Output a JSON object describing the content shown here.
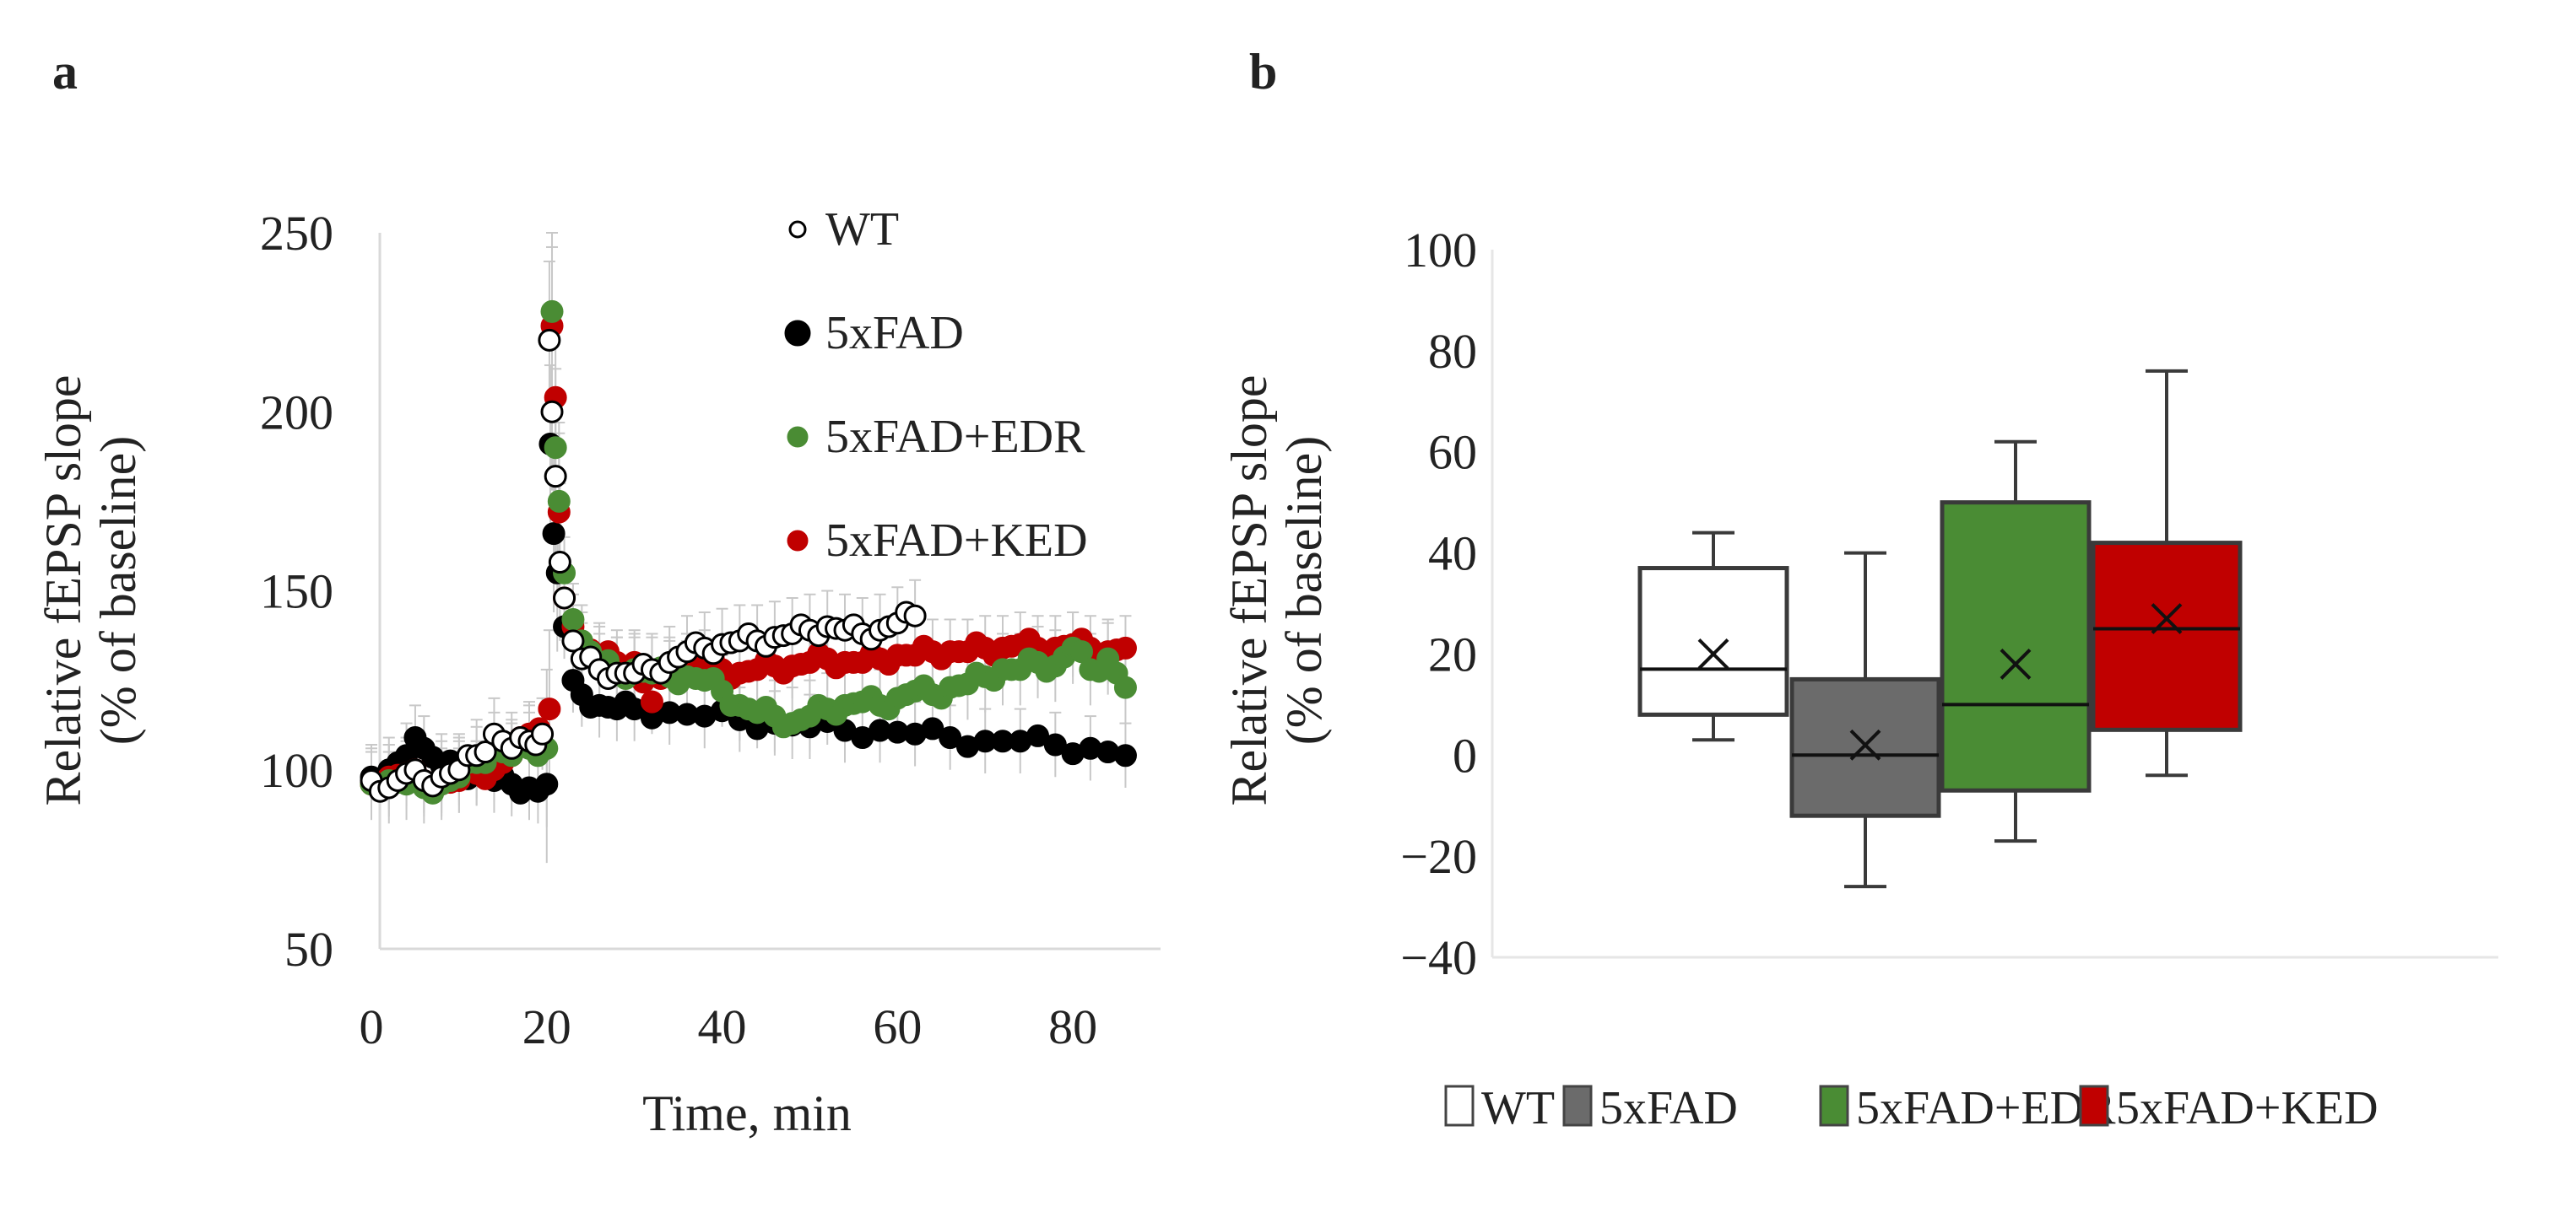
{
  "chart_data": [
    {
      "panel": "a",
      "type": "scatter",
      "title": "",
      "xlabel": "Time, min",
      "ylabel": "Relative fEPSP slope (% of baseline)",
      "xlim": [
        0,
        90
      ],
      "ylim": [
        50,
        250
      ],
      "xticks": [
        "0",
        "20",
        "40",
        "60",
        "80"
      ],
      "yticks": [
        "50",
        "100",
        "150",
        "200",
        "250"
      ],
      "grid": false,
      "legend_position": "top-right",
      "error_bars": "SEM (grey)",
      "series": [
        {
          "name": "WT",
          "color": "#ffffff",
          "stroke": "#000000",
          "x": [
            0,
            2,
            4,
            6,
            8,
            10,
            12,
            14,
            16,
            18,
            19.5,
            20.3,
            20.6,
            21,
            21.5,
            22,
            23,
            24,
            26,
            28,
            30,
            32,
            34,
            36,
            38,
            40,
            42,
            44,
            46,
            48,
            50,
            52,
            54,
            56,
            58,
            60,
            62
          ],
          "y": [
            97,
            95,
            99,
            97,
            98,
            100,
            104,
            110,
            106,
            108,
            110,
            220,
            200,
            182,
            158,
            148,
            136,
            131,
            128,
            127,
            127,
            128,
            130,
            133,
            134,
            135,
            136,
            136,
            137,
            138,
            139,
            140,
            139,
            138,
            139,
            141,
            143
          ],
          "sem": 10
        },
        {
          "name": "5xFAD",
          "color": "#000000",
          "stroke": "#000000",
          "x": [
            0,
            2,
            4,
            5,
            6,
            8,
            10,
            12,
            14,
            16,
            18,
            19,
            20,
            20.4,
            20.8,
            21.2,
            22,
            23,
            24,
            26,
            28,
            30,
            34,
            38,
            42,
            46,
            50,
            54,
            58,
            62,
            66,
            70,
            74,
            78,
            82,
            86
          ],
          "y": [
            98,
            100,
            104,
            109,
            106,
            101,
            100,
            99,
            97,
            96,
            95,
            94,
            96,
            191,
            166,
            155,
            140,
            125,
            121,
            118,
            117,
            117,
            116,
            115,
            114,
            113,
            112,
            111,
            111,
            110,
            109,
            108,
            108,
            107,
            106,
            104
          ],
          "sem": 9
        },
        {
          "name": "5xFAD+EDR",
          "color": "#4a8c34",
          "stroke": "#4a8c34",
          "x": [
            0,
            2,
            4,
            6,
            8,
            10,
            12,
            14,
            16,
            18,
            20,
            20.6,
            21,
            21.4,
            22,
            23,
            24,
            26,
            28,
            30,
            32,
            34,
            36,
            38,
            40,
            42,
            44,
            46,
            48,
            50,
            52,
            54,
            56,
            58,
            60,
            62,
            64,
            66,
            68,
            70,
            72,
            74,
            76,
            78,
            80,
            82,
            84,
            86
          ],
          "y": [
            96,
            97,
            96,
            95,
            96,
            98,
            102,
            106,
            104,
            106,
            106,
            228,
            190,
            175,
            155,
            142,
            136,
            130,
            127,
            128,
            127,
            126,
            126,
            125,
            122,
            118,
            116,
            115,
            113,
            115,
            117,
            118,
            119,
            118,
            120,
            122,
            121,
            123,
            124,
            126,
            128,
            128,
            130,
            129,
            134,
            128,
            131,
            123
          ],
          "sem": 10
        },
        {
          "name": "5xFAD+KED",
          "color": "#c00000",
          "stroke": "#c00000",
          "x": [
            0,
            2,
            4,
            6,
            8,
            10,
            12,
            14,
            16,
            18,
            20.3,
            20.6,
            21,
            21.4,
            22,
            23,
            24,
            26,
            28,
            30,
            32,
            34,
            36,
            38,
            40,
            42,
            44,
            46,
            48,
            50,
            52,
            54,
            56,
            58,
            60,
            62,
            64,
            66,
            68,
            70,
            72,
            74,
            76,
            78,
            80,
            82,
            84,
            86
          ],
          "y": [
            96,
            98,
            99,
            97,
            96,
            97,
            99,
            100,
            104,
            110,
            117,
            224,
            204,
            172,
            148,
            140,
            135,
            132,
            130,
            130,
            119,
            128,
            129,
            130,
            128,
            127,
            128,
            129,
            129,
            130,
            131,
            130,
            130,
            131,
            132,
            132,
            133,
            133,
            133,
            134,
            134,
            135,
            134,
            134,
            135,
            134,
            133,
            134
          ],
          "sem": 9
        }
      ]
    },
    {
      "panel": "b",
      "type": "box",
      "title": "",
      "xlabel": "",
      "ylabel": "Relative fEPSP slope (% of baseline)",
      "ylim": [
        -40,
        100
      ],
      "yticks": [
        "-40",
        "-20",
        "0",
        "20",
        "40",
        "60",
        "80",
        "100"
      ],
      "grid": false,
      "legend_position": "bottom",
      "categories": [
        "WT",
        "5xFAD",
        "5xFAD+EDR",
        "5xFAD+KED"
      ],
      "colors": [
        "#ffffff",
        "#6b6b6b",
        "#4a8c34",
        "#c00000"
      ],
      "series": [
        {
          "name": "WT",
          "min": 3,
          "q1": 8,
          "median": 17,
          "q3": 37,
          "max": 44,
          "mean": 20
        },
        {
          "name": "5xFAD",
          "min": -26,
          "q1": -12,
          "median": 0,
          "q3": 15,
          "max": 40,
          "mean": 2
        },
        {
          "name": "5xFAD+EDR",
          "min": -17,
          "q1": -7,
          "median": 10,
          "q3": 50,
          "max": 62,
          "mean": 18
        },
        {
          "name": "5xFAD+KED",
          "min": -4,
          "q1": 5,
          "median": 25,
          "q3": 42,
          "max": 76,
          "mean": 27
        }
      ]
    }
  ],
  "labels": {
    "panel_a": "a",
    "panel_b": "b",
    "ylabel_line1": "Relative fEPSP slope",
    "ylabel_line2": "(% of baseline)"
  }
}
